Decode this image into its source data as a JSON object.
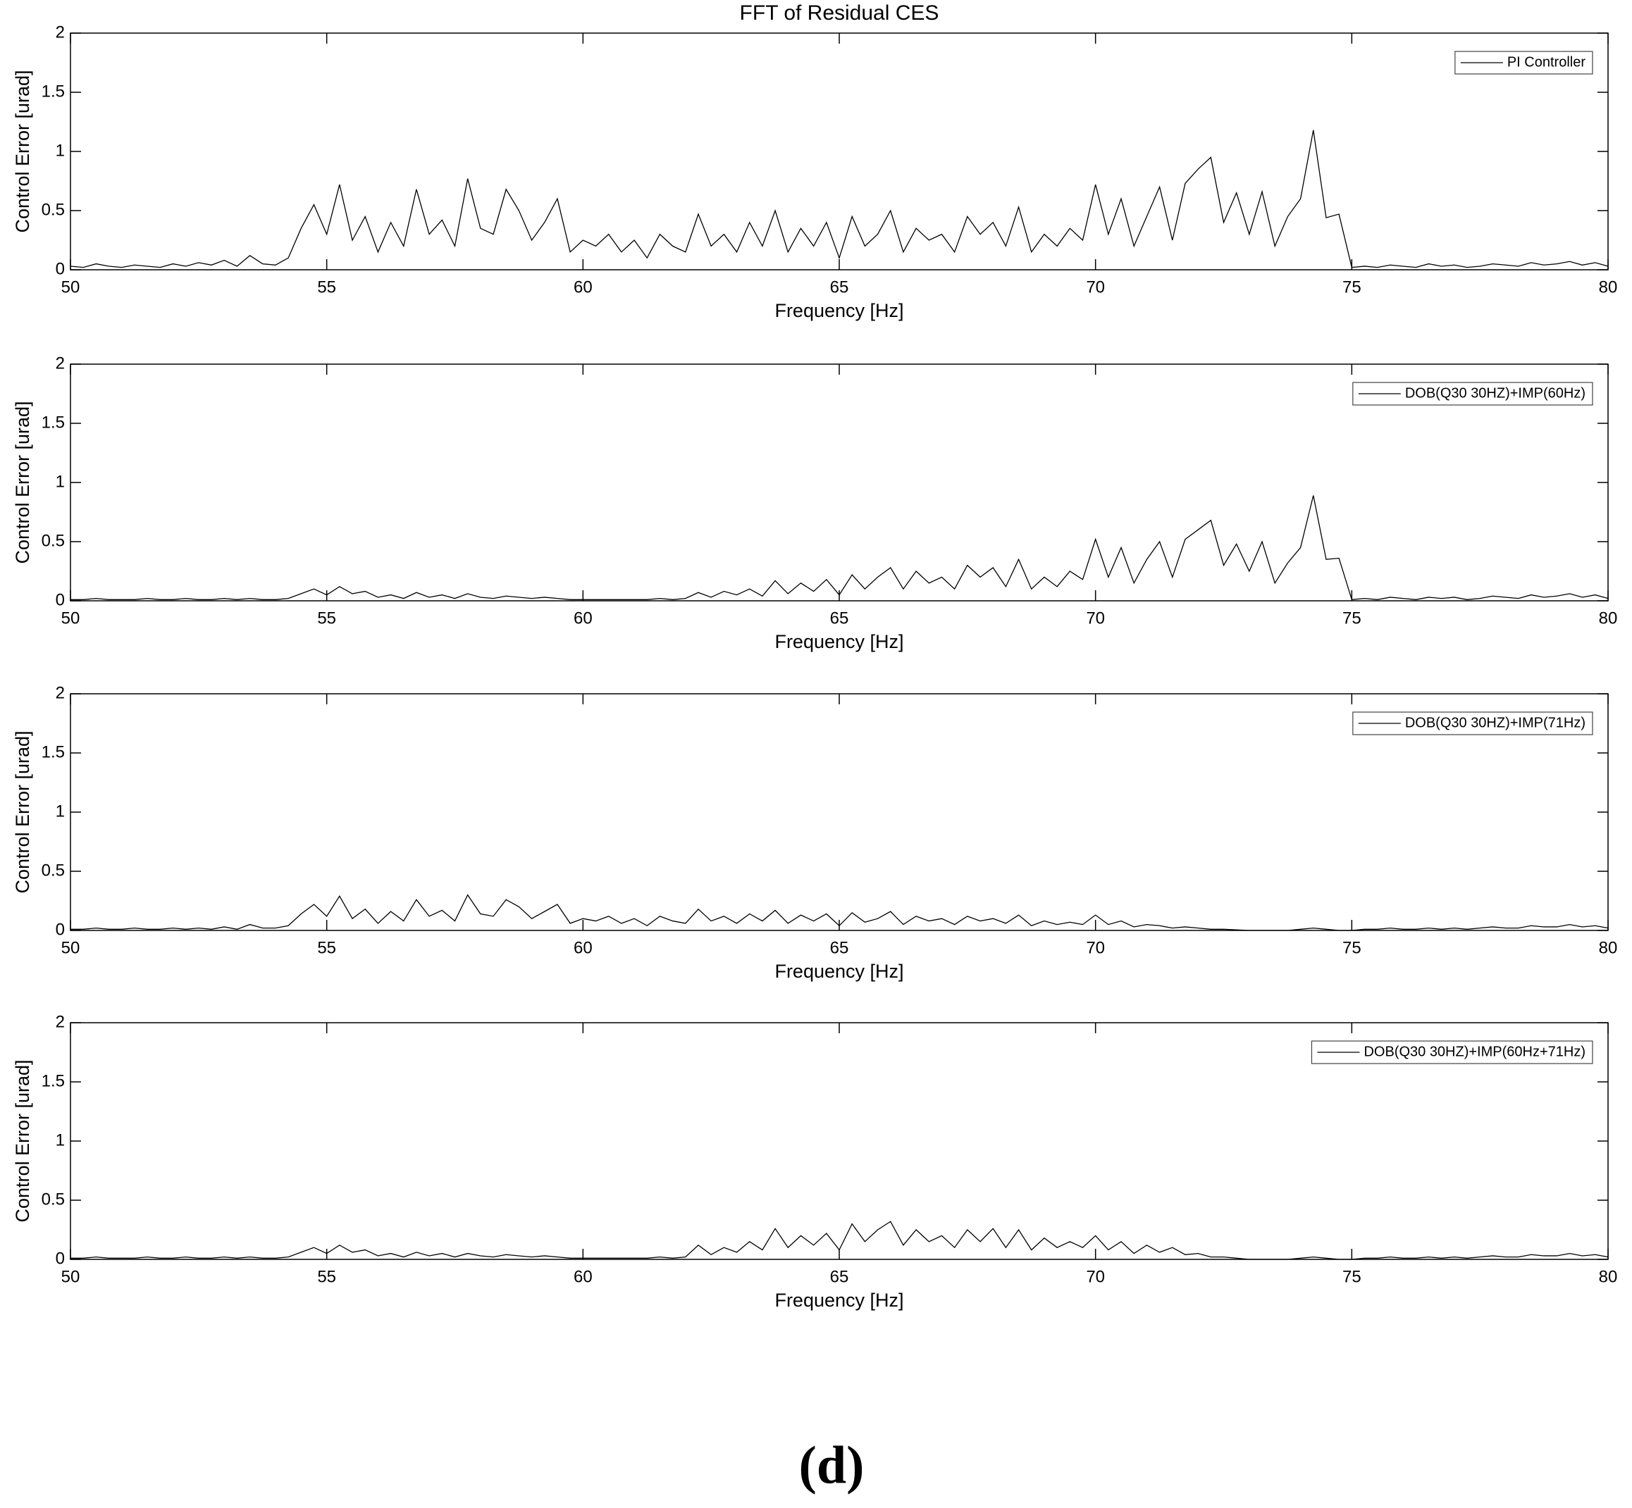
{
  "caption": "(d)",
  "chart_data": [
    {
      "type": "line",
      "title": "FFT of Residual CES",
      "xlabel": "Frequency [Hz]",
      "ylabel": "Control Error [urad]",
      "xlim": [
        50,
        80
      ],
      "xticks": [
        50,
        55,
        60,
        65,
        70,
        75,
        80
      ],
      "ylim": [
        0,
        2
      ],
      "yticks": [
        0,
        0.5,
        1,
        1.5,
        2
      ],
      "x": [
        50,
        50.25,
        50.5,
        50.75,
        51,
        51.25,
        51.5,
        51.75,
        52,
        52.25,
        52.5,
        52.75,
        53,
        53.25,
        53.5,
        53.75,
        54,
        54.25,
        54.5,
        54.75,
        55,
        55.25,
        55.5,
        55.75,
        56,
        56.25,
        56.5,
        56.75,
        57,
        57.25,
        57.5,
        57.75,
        58,
        58.25,
        58.5,
        58.75,
        59,
        59.25,
        59.5,
        59.75,
        60,
        60.25,
        60.5,
        60.75,
        61,
        61.25,
        61.5,
        61.75,
        62,
        62.25,
        62.5,
        62.75,
        63,
        63.25,
        63.5,
        63.75,
        64,
        64.25,
        64.5,
        64.75,
        65,
        65.25,
        65.5,
        65.75,
        66,
        66.25,
        66.5,
        66.75,
        67,
        67.25,
        67.5,
        67.75,
        68,
        68.25,
        68.5,
        68.75,
        69,
        69.25,
        69.5,
        69.75,
        70,
        70.25,
        70.5,
        70.75,
        71,
        71.25,
        71.5,
        71.75,
        72,
        72.25,
        72.5,
        72.75,
        73,
        73.25,
        73.5,
        73.75,
        74,
        74.25,
        74.5,
        74.75,
        75,
        75.25,
        75.5,
        75.75,
        76,
        76.25,
        76.5,
        76.75,
        77,
        77.25,
        77.5,
        77.75,
        78,
        78.25,
        78.5,
        78.75,
        79,
        79.25,
        79.5,
        79.75,
        80
      ],
      "series": [
        {
          "name": "PI Controller",
          "color": "#000000",
          "values": [
            0.03,
            0.02,
            0.05,
            0.03,
            0.02,
            0.04,
            0.03,
            0.02,
            0.05,
            0.03,
            0.06,
            0.04,
            0.08,
            0.03,
            0.12,
            0.05,
            0.04,
            0.1,
            0.35,
            0.55,
            0.3,
            0.72,
            0.25,
            0.45,
            0.15,
            0.4,
            0.2,
            0.68,
            0.3,
            0.42,
            0.2,
            0.77,
            0.35,
            0.3,
            0.68,
            0.5,
            0.25,
            0.4,
            0.6,
            0.15,
            0.25,
            0.2,
            0.3,
            0.15,
            0.25,
            0.1,
            0.3,
            0.2,
            0.15,
            0.47,
            0.2,
            0.3,
            0.15,
            0.4,
            0.2,
            0.5,
            0.15,
            0.35,
            0.2,
            0.4,
            0.1,
            0.45,
            0.2,
            0.3,
            0.5,
            0.15,
            0.35,
            0.25,
            0.3,
            0.15,
            0.45,
            0.3,
            0.4,
            0.2,
            0.53,
            0.15,
            0.3,
            0.2,
            0.35,
            0.25,
            0.72,
            0.3,
            0.6,
            0.2,
            0.45,
            0.7,
            0.25,
            0.73,
            0.85,
            0.95,
            0.4,
            0.65,
            0.3,
            0.66,
            0.2,
            0.45,
            0.6,
            1.18,
            0.44,
            0.47,
            0.02,
            0.03,
            0.02,
            0.04,
            0.03,
            0.02,
            0.05,
            0.03,
            0.04,
            0.02,
            0.03,
            0.05,
            0.04,
            0.03,
            0.06,
            0.04,
            0.05,
            0.07,
            0.04,
            0.06,
            0.03
          ]
        }
      ]
    },
    {
      "type": "line",
      "xlabel": "Frequency [Hz]",
      "ylabel": "Control Error [urad]",
      "xlim": [
        50,
        80
      ],
      "xticks": [
        50,
        55,
        60,
        65,
        70,
        75,
        80
      ],
      "ylim": [
        0,
        2
      ],
      "yticks": [
        0,
        0.5,
        1,
        1.5,
        2
      ],
      "x": [
        50,
        50.25,
        50.5,
        50.75,
        51,
        51.25,
        51.5,
        51.75,
        52,
        52.25,
        52.5,
        52.75,
        53,
        53.25,
        53.5,
        53.75,
        54,
        54.25,
        54.5,
        54.75,
        55,
        55.25,
        55.5,
        55.75,
        56,
        56.25,
        56.5,
        56.75,
        57,
        57.25,
        57.5,
        57.75,
        58,
        58.25,
        58.5,
        58.75,
        59,
        59.25,
        59.5,
        59.75,
        60,
        60.25,
        60.5,
        60.75,
        61,
        61.25,
        61.5,
        61.75,
        62,
        62.25,
        62.5,
        62.75,
        63,
        63.25,
        63.5,
        63.75,
        64,
        64.25,
        64.5,
        64.75,
        65,
        65.25,
        65.5,
        65.75,
        66,
        66.25,
        66.5,
        66.75,
        67,
        67.25,
        67.5,
        67.75,
        68,
        68.25,
        68.5,
        68.75,
        69,
        69.25,
        69.5,
        69.75,
        70,
        70.25,
        70.5,
        70.75,
        71,
        71.25,
        71.5,
        71.75,
        72,
        72.25,
        72.5,
        72.75,
        73,
        73.25,
        73.5,
        73.75,
        74,
        74.25,
        74.5,
        74.75,
        75,
        75.25,
        75.5,
        75.75,
        76,
        76.25,
        76.5,
        76.75,
        77,
        77.25,
        77.5,
        77.75,
        78,
        78.25,
        78.5,
        78.75,
        79,
        79.25,
        79.5,
        79.75,
        80
      ],
      "series": [
        {
          "name": "DOB(Q30 30HZ)+IMP(60Hz)",
          "color": "#000000",
          "values": [
            0.01,
            0.01,
            0.02,
            0.01,
            0.01,
            0.01,
            0.02,
            0.01,
            0.01,
            0.02,
            0.01,
            0.01,
            0.02,
            0.01,
            0.02,
            0.01,
            0.01,
            0.02,
            0.06,
            0.1,
            0.05,
            0.12,
            0.06,
            0.08,
            0.03,
            0.05,
            0.02,
            0.07,
            0.03,
            0.05,
            0.02,
            0.06,
            0.03,
            0.02,
            0.04,
            0.03,
            0.02,
            0.03,
            0.02,
            0.01,
            0.01,
            0.01,
            0.01,
            0.01,
            0.01,
            0.01,
            0.02,
            0.01,
            0.02,
            0.07,
            0.03,
            0.08,
            0.05,
            0.1,
            0.04,
            0.17,
            0.06,
            0.15,
            0.08,
            0.18,
            0.05,
            0.22,
            0.1,
            0.2,
            0.28,
            0.1,
            0.25,
            0.15,
            0.2,
            0.1,
            0.3,
            0.2,
            0.28,
            0.12,
            0.35,
            0.1,
            0.2,
            0.12,
            0.25,
            0.18,
            0.52,
            0.2,
            0.45,
            0.15,
            0.35,
            0.5,
            0.2,
            0.52,
            0.6,
            0.68,
            0.3,
            0.48,
            0.25,
            0.5,
            0.15,
            0.32,
            0.45,
            0.89,
            0.35,
            0.36,
            0.01,
            0.02,
            0.01,
            0.03,
            0.02,
            0.01,
            0.03,
            0.02,
            0.03,
            0.01,
            0.02,
            0.04,
            0.03,
            0.02,
            0.05,
            0.03,
            0.04,
            0.06,
            0.03,
            0.05,
            0.02
          ]
        }
      ]
    },
    {
      "type": "line",
      "xlabel": "Frequency [Hz]",
      "ylabel": "Control Error [urad]",
      "xlim": [
        50,
        80
      ],
      "xticks": [
        50,
        55,
        60,
        65,
        70,
        75,
        80
      ],
      "ylim": [
        0,
        2
      ],
      "yticks": [
        0,
        0.5,
        1,
        1.5,
        2
      ],
      "x": [
        50,
        50.25,
        50.5,
        50.75,
        51,
        51.25,
        51.5,
        51.75,
        52,
        52.25,
        52.5,
        52.75,
        53,
        53.25,
        53.5,
        53.75,
        54,
        54.25,
        54.5,
        54.75,
        55,
        55.25,
        55.5,
        55.75,
        56,
        56.25,
        56.5,
        56.75,
        57,
        57.25,
        57.5,
        57.75,
        58,
        58.25,
        58.5,
        58.75,
        59,
        59.25,
        59.5,
        59.75,
        60,
        60.25,
        60.5,
        60.75,
        61,
        61.25,
        61.5,
        61.75,
        62,
        62.25,
        62.5,
        62.75,
        63,
        63.25,
        63.5,
        63.75,
        64,
        64.25,
        64.5,
        64.75,
        65,
        65.25,
        65.5,
        65.75,
        66,
        66.25,
        66.5,
        66.75,
        67,
        67.25,
        67.5,
        67.75,
        68,
        68.25,
        68.5,
        68.75,
        69,
        69.25,
        69.5,
        69.75,
        70,
        70.25,
        70.5,
        70.75,
        71,
        71.25,
        71.5,
        71.75,
        72,
        72.25,
        72.5,
        72.75,
        73,
        73.25,
        73.5,
        73.75,
        74,
        74.25,
        74.5,
        74.75,
        75,
        75.25,
        75.5,
        75.75,
        76,
        76.25,
        76.5,
        76.75,
        77,
        77.25,
        77.5,
        77.75,
        78,
        78.25,
        78.5,
        78.75,
        79,
        79.25,
        79.5,
        79.75,
        80
      ],
      "series": [
        {
          "name": "DOB(Q30 30HZ)+IMP(71Hz)",
          "color": "#000000",
          "values": [
            0.01,
            0.01,
            0.02,
            0.01,
            0.01,
            0.02,
            0.01,
            0.01,
            0.02,
            0.01,
            0.02,
            0.01,
            0.03,
            0.01,
            0.05,
            0.02,
            0.02,
            0.04,
            0.14,
            0.22,
            0.12,
            0.29,
            0.1,
            0.18,
            0.06,
            0.16,
            0.08,
            0.26,
            0.12,
            0.17,
            0.08,
            0.3,
            0.14,
            0.12,
            0.26,
            0.2,
            0.1,
            0.16,
            0.22,
            0.06,
            0.1,
            0.08,
            0.12,
            0.06,
            0.1,
            0.04,
            0.12,
            0.08,
            0.06,
            0.18,
            0.08,
            0.12,
            0.06,
            0.14,
            0.08,
            0.17,
            0.06,
            0.13,
            0.08,
            0.14,
            0.04,
            0.15,
            0.07,
            0.1,
            0.16,
            0.05,
            0.12,
            0.08,
            0.1,
            0.05,
            0.12,
            0.08,
            0.1,
            0.06,
            0.13,
            0.04,
            0.08,
            0.05,
            0.07,
            0.05,
            0.13,
            0.05,
            0.08,
            0.03,
            0.05,
            0.04,
            0.02,
            0.03,
            0.02,
            0.01,
            0.01,
            0.005,
            0,
            0,
            0,
            0,
            0.01,
            0.02,
            0.01,
            0,
            0,
            0.01,
            0.01,
            0.02,
            0.01,
            0.01,
            0.02,
            0.01,
            0.02,
            0.01,
            0.02,
            0.03,
            0.02,
            0.02,
            0.04,
            0.03,
            0.03,
            0.05,
            0.03,
            0.04,
            0.02
          ]
        }
      ]
    },
    {
      "type": "line",
      "xlabel": "Frequency [Hz]",
      "ylabel": "Control Error [urad]",
      "xlim": [
        50,
        80
      ],
      "xticks": [
        50,
        55,
        60,
        65,
        70,
        75,
        80
      ],
      "ylim": [
        0,
        2
      ],
      "yticks": [
        0,
        0.5,
        1,
        1.5,
        2
      ],
      "x": [
        50,
        50.25,
        50.5,
        50.75,
        51,
        51.25,
        51.5,
        51.75,
        52,
        52.25,
        52.5,
        52.75,
        53,
        53.25,
        53.5,
        53.75,
        54,
        54.25,
        54.5,
        54.75,
        55,
        55.25,
        55.5,
        55.75,
        56,
        56.25,
        56.5,
        56.75,
        57,
        57.25,
        57.5,
        57.75,
        58,
        58.25,
        58.5,
        58.75,
        59,
        59.25,
        59.5,
        59.75,
        60,
        60.25,
        60.5,
        60.75,
        61,
        61.25,
        61.5,
        61.75,
        62,
        62.25,
        62.5,
        62.75,
        63,
        63.25,
        63.5,
        63.75,
        64,
        64.25,
        64.5,
        64.75,
        65,
        65.25,
        65.5,
        65.75,
        66,
        66.25,
        66.5,
        66.75,
        67,
        67.25,
        67.5,
        67.75,
        68,
        68.25,
        68.5,
        68.75,
        69,
        69.25,
        69.5,
        69.75,
        70,
        70.25,
        70.5,
        70.75,
        71,
        71.25,
        71.5,
        71.75,
        72,
        72.25,
        72.5,
        72.75,
        73,
        73.25,
        73.5,
        73.75,
        74,
        74.25,
        74.5,
        74.75,
        75,
        75.25,
        75.5,
        75.75,
        76,
        76.25,
        76.5,
        76.75,
        77,
        77.25,
        77.5,
        77.75,
        78,
        78.25,
        78.5,
        78.75,
        79,
        79.25,
        79.5,
        79.75,
        80
      ],
      "series": [
        {
          "name": "DOB(Q30 30HZ)+IMP(60Hz+71Hz)",
          "color": "#000000",
          "values": [
            0.01,
            0.01,
            0.02,
            0.01,
            0.01,
            0.01,
            0.02,
            0.01,
            0.01,
            0.02,
            0.01,
            0.01,
            0.02,
            0.01,
            0.02,
            0.01,
            0.01,
            0.02,
            0.06,
            0.1,
            0.05,
            0.12,
            0.06,
            0.08,
            0.03,
            0.05,
            0.02,
            0.06,
            0.03,
            0.05,
            0.02,
            0.05,
            0.03,
            0.02,
            0.04,
            0.03,
            0.02,
            0.03,
            0.02,
            0.01,
            0.01,
            0.01,
            0.01,
            0.01,
            0.01,
            0.01,
            0.02,
            0.01,
            0.02,
            0.12,
            0.04,
            0.1,
            0.06,
            0.15,
            0.08,
            0.26,
            0.1,
            0.2,
            0.12,
            0.22,
            0.08,
            0.3,
            0.15,
            0.25,
            0.32,
            0.12,
            0.25,
            0.15,
            0.2,
            0.1,
            0.25,
            0.15,
            0.26,
            0.1,
            0.25,
            0.08,
            0.18,
            0.1,
            0.15,
            0.1,
            0.2,
            0.08,
            0.15,
            0.05,
            0.12,
            0.06,
            0.1,
            0.04,
            0.05,
            0.02,
            0.02,
            0.01,
            0,
            0,
            0,
            0,
            0.01,
            0.02,
            0.01,
            0,
            0,
            0.01,
            0.01,
            0.02,
            0.01,
            0.01,
            0.02,
            0.01,
            0.02,
            0.01,
            0.02,
            0.03,
            0.02,
            0.02,
            0.04,
            0.03,
            0.03,
            0.05,
            0.03,
            0.04,
            0.02
          ]
        }
      ]
    }
  ]
}
